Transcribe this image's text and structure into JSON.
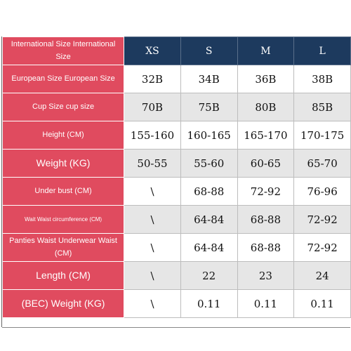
{
  "header": {
    "label": "International Size International Size",
    "sizes": [
      "XS",
      "S",
      "M",
      "L"
    ]
  },
  "rows": [
    {
      "label": "European Size European Size",
      "values": [
        "32B",
        "34B",
        "36B",
        "38B"
      ]
    },
    {
      "label": "Cup Size cup size",
      "values": [
        "70B",
        "75B",
        "80B",
        "85B"
      ]
    },
    {
      "label": "Height (CM)",
      "values": [
        "155-160",
        "160-165",
        "165-170",
        "170-175"
      ]
    },
    {
      "label": "Weight (KG)",
      "values": [
        "50-55",
        "55-60",
        "60-65",
        "65-70"
      ]
    },
    {
      "label": "Under bust (CM)",
      "values": [
        "\\",
        "68-88",
        "72-92",
        "76-96"
      ]
    },
    {
      "label": "Wait Waist circumference (CM)",
      "values": [
        "\\",
        "64-84",
        "68-88",
        "72-92"
      ]
    },
    {
      "label": "Panties Waist Underwear Waist (CM)",
      "values": [
        "\\",
        "64-84",
        "68-88",
        "72-92"
      ]
    },
    {
      "label": "Length (CM)",
      "values": [
        "\\",
        "22",
        "23",
        "24"
      ]
    },
    {
      "label": "(BEC) Weight (KG)",
      "values": [
        "\\",
        "0.11",
        "0.11",
        "0.11"
      ]
    }
  ]
}
